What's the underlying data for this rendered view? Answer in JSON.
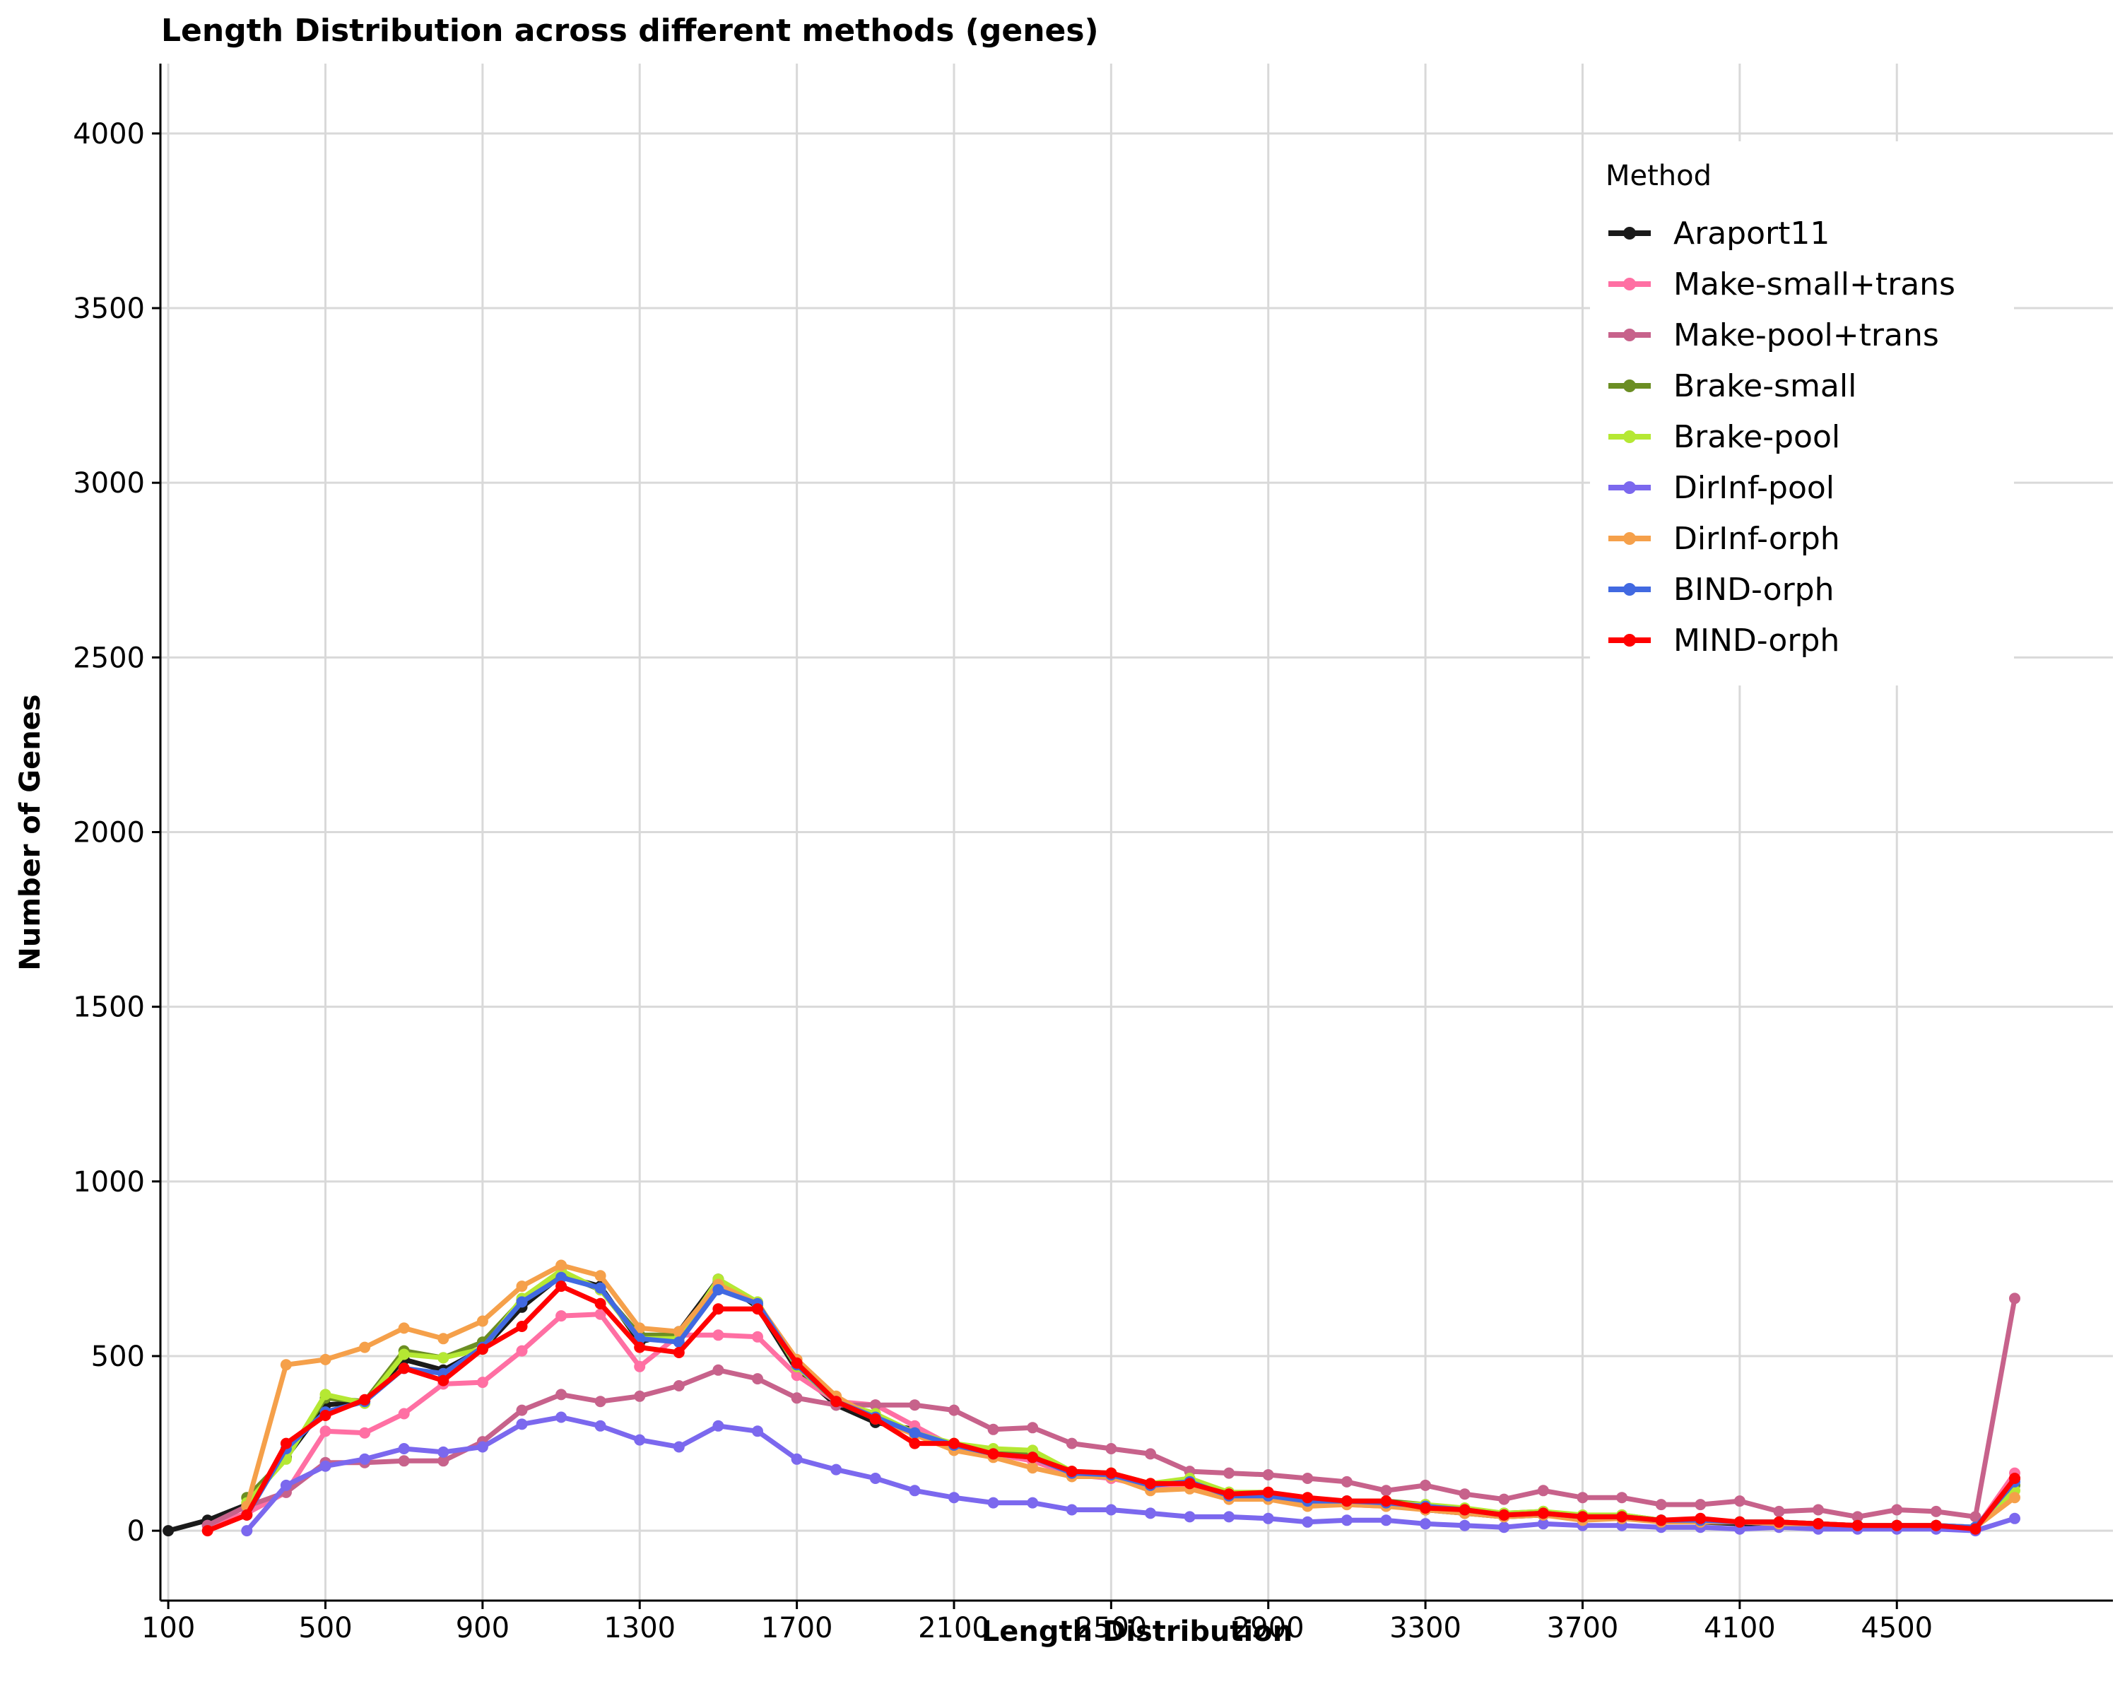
{
  "chart_data": {
    "type": "line",
    "title": "Length Distribution across different methods (genes)",
    "xlabel": "Length Distribution",
    "ylabel": "Number of Genes",
    "xlim": [
      80,
      5050
    ],
    "ylim": [
      -200,
      4200
    ],
    "xticks": [
      100,
      500,
      900,
      1300,
      1700,
      2100,
      2500,
      2900,
      3300,
      3700,
      4100,
      4500
    ],
    "yticks": [
      0,
      500,
      1000,
      1500,
      2000,
      2500,
      3000,
      3500,
      4000
    ],
    "grid": true,
    "legend": {
      "title": "Method",
      "position": "top-right"
    },
    "x": [
      100,
      200,
      300,
      400,
      500,
      600,
      700,
      800,
      900,
      1000,
      1100,
      1200,
      1300,
      1400,
      1500,
      1600,
      1700,
      1800,
      1900,
      2000,
      2100,
      2200,
      2300,
      2400,
      2500,
      2600,
      2700,
      2800,
      2900,
      3000,
      3100,
      3200,
      3300,
      3400,
      3500,
      3600,
      3700,
      3800,
      3900,
      4000,
      4100,
      4200,
      4300,
      4400,
      4500,
      4600,
      4700,
      4800
    ],
    "series": [
      {
        "name": "Araport11",
        "color": "#1a1a1a",
        "values": [
          0,
          30,
          75,
          210,
          360,
          370,
          490,
          460,
          520,
          640,
          730,
          700,
          540,
          570,
          720,
          640,
          460,
          360,
          310,
          290,
          240,
          220,
          210,
          160,
          160,
          130,
          130,
          95,
          95,
          80,
          80,
          80,
          60,
          50,
          40,
          45,
          35,
          40,
          30,
          25,
          20,
          20,
          20,
          10,
          10,
          10,
          5,
          150
        ]
      },
      {
        "name": "Make-small+trans",
        "color": "#ff6fa3",
        "values": [
          null,
          15,
          50,
          110,
          285,
          280,
          335,
          420,
          425,
          515,
          615,
          620,
          470,
          560,
          560,
          555,
          445,
          370,
          360,
          300,
          240,
          220,
          200,
          160,
          150,
          125,
          130,
          100,
          100,
          75,
          75,
          70,
          65,
          55,
          40,
          50,
          30,
          40,
          25,
          30,
          25,
          20,
          20,
          15,
          15,
          15,
          5,
          165
        ]
      },
      {
        "name": "Make-pool+trans",
        "color": "#c7628b",
        "values": [
          null,
          15,
          70,
          110,
          195,
          195,
          200,
          200,
          255,
          345,
          390,
          370,
          385,
          415,
          460,
          435,
          380,
          360,
          360,
          360,
          345,
          290,
          295,
          250,
          235,
          220,
          170,
          165,
          160,
          150,
          140,
          115,
          130,
          105,
          90,
          115,
          95,
          95,
          75,
          75,
          85,
          55,
          60,
          40,
          60,
          55,
          40,
          665
        ]
      },
      {
        "name": "Brake-small",
        "color": "#6b8e23",
        "values": [
          null,
          null,
          95,
          210,
          380,
          370,
          515,
          495,
          540,
          660,
          735,
          690,
          560,
          560,
          715,
          645,
          470,
          370,
          330,
          280,
          245,
          220,
          220,
          165,
          165,
          130,
          145,
          110,
          105,
          90,
          85,
          85,
          75,
          60,
          50,
          55,
          40,
          45,
          30,
          30,
          25,
          25,
          20,
          15,
          15,
          15,
          10,
          130
        ]
      },
      {
        "name": "Brake-pool",
        "color": "#b5e833",
        "values": [
          null,
          null,
          80,
          205,
          390,
          365,
          505,
          495,
          520,
          665,
          745,
          690,
          550,
          550,
          720,
          655,
          470,
          370,
          335,
          280,
          250,
          235,
          230,
          170,
          165,
          135,
          150,
          110,
          110,
          85,
          85,
          80,
          75,
          65,
          50,
          55,
          45,
          45,
          30,
          30,
          25,
          25,
          20,
          15,
          15,
          15,
          10,
          115
        ]
      },
      {
        "name": "DirInf-pool",
        "color": "#7b68ee",
        "values": [
          null,
          null,
          0,
          130,
          185,
          205,
          235,
          225,
          240,
          305,
          325,
          300,
          260,
          240,
          300,
          285,
          205,
          175,
          150,
          115,
          95,
          80,
          80,
          60,
          60,
          50,
          40,
          40,
          35,
          25,
          30,
          30,
          20,
          15,
          10,
          20,
          15,
          15,
          10,
          10,
          5,
          10,
          5,
          5,
          5,
          5,
          0,
          35
        ]
      },
      {
        "name": "DirInf-orph",
        "color": "#f5a04a",
        "values": [
          null,
          null,
          70,
          475,
          490,
          525,
          580,
          550,
          600,
          700,
          760,
          730,
          580,
          570,
          705,
          650,
          490,
          385,
          320,
          275,
          230,
          210,
          180,
          155,
          155,
          115,
          120,
          90,
          90,
          70,
          75,
          70,
          60,
          50,
          40,
          45,
          30,
          35,
          25,
          25,
          25,
          20,
          20,
          15,
          15,
          15,
          10,
          95
        ]
      },
      {
        "name": "BIND-orph",
        "color": "#4169e1",
        "values": [
          null,
          null,
          45,
          235,
          340,
          370,
          465,
          450,
          525,
          655,
          725,
          695,
          550,
          540,
          690,
          650,
          475,
          370,
          325,
          280,
          245,
          220,
          210,
          165,
          160,
          130,
          140,
          100,
          100,
          85,
          85,
          80,
          70,
          60,
          45,
          50,
          40,
          40,
          30,
          30,
          25,
          25,
          20,
          15,
          15,
          15,
          10,
          140
        ]
      },
      {
        "name": "MIND-orph",
        "color": "#ff0000",
        "values": [
          null,
          0,
          45,
          250,
          330,
          375,
          465,
          430,
          520,
          585,
          700,
          650,
          525,
          510,
          635,
          635,
          480,
          370,
          320,
          250,
          250,
          220,
          210,
          170,
          165,
          135,
          135,
          105,
          110,
          95,
          85,
          85,
          65,
          60,
          45,
          50,
          40,
          40,
          30,
          35,
          25,
          25,
          20,
          15,
          15,
          15,
          5,
          150
        ]
      }
    ]
  }
}
